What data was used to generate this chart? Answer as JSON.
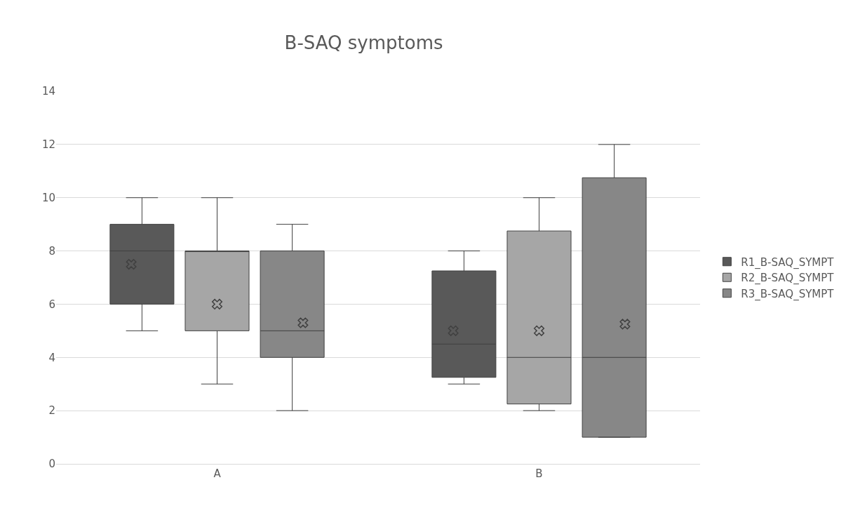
{
  "chart_data": {
    "type": "box",
    "title": "B-SAQ symptoms",
    "categories": [
      "A",
      "B"
    ],
    "ylim": [
      0,
      14
    ],
    "yticks": [
      0,
      2,
      4,
      6,
      8,
      10,
      12,
      14
    ],
    "grid": "y",
    "legend": "right",
    "marker": "cross",
    "series": [
      {
        "name": "R1_B-SAQ_SYMPT",
        "color": "#595959",
        "boxes": [
          {
            "low": 5,
            "q1": 6,
            "median": 8,
            "q3": 9,
            "high": 10,
            "mean": 7.5
          },
          {
            "low": 3,
            "q1": 3.25,
            "median": 4.5,
            "q3": 7.25,
            "high": 8,
            "mean": 5
          }
        ]
      },
      {
        "name": "R2_B-SAQ_SYMPT",
        "color": "#a6a6a6",
        "boxes": [
          {
            "low": 3,
            "q1": 5,
            "median": 8,
            "q3": 8,
            "high": 10,
            "mean": 6
          },
          {
            "low": 2,
            "q1": 2.25,
            "median": 4,
            "q3": 8.75,
            "high": 10,
            "mean": 5
          }
        ]
      },
      {
        "name": "R3_B-SAQ_SYMPT",
        "color": "#878787",
        "boxes": [
          {
            "low": 2,
            "q1": 4,
            "median": 5,
            "q3": 8,
            "high": 9,
            "mean": 5.3
          },
          {
            "low": 1,
            "q1": 1,
            "median": 4,
            "q3": 10.75,
            "high": 12,
            "mean": 5.25
          }
        ]
      }
    ]
  }
}
